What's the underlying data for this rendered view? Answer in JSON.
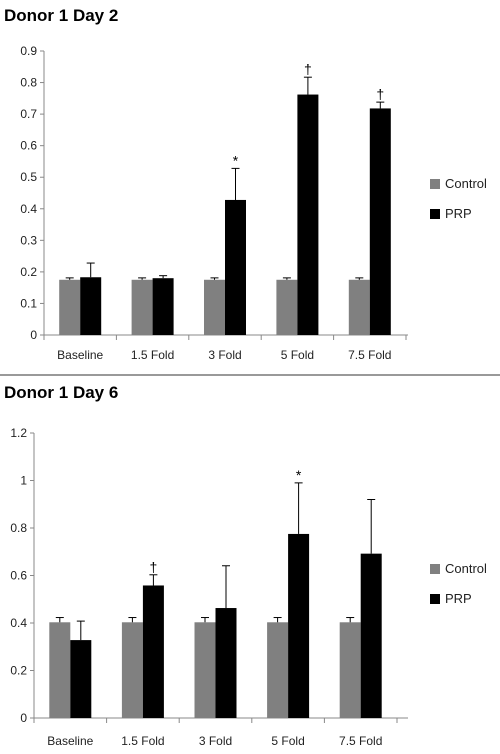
{
  "chart_data": [
    {
      "type": "bar",
      "title": "Donor 1 Day 2",
      "xlabel": "",
      "ylabel": "",
      "categories": [
        "Baseline",
        "1.5 Fold",
        "3 Fold",
        "5 Fold",
        "7.5 Fold"
      ],
      "series": [
        {
          "name": "Control",
          "color": "#808080",
          "values": [
            0.175,
            0.175,
            0.175,
            0.175,
            0.175
          ],
          "errors": [
            0.006,
            0.006,
            0.006,
            0.006,
            0.006
          ]
        },
        {
          "name": "PRP",
          "color": "#000000",
          "values": [
            0.183,
            0.18,
            0.428,
            0.762,
            0.718
          ],
          "errors": [
            0.045,
            0.008,
            0.1,
            0.055,
            0.02
          ]
        }
      ],
      "annotations": [
        "",
        "",
        "*",
        "†",
        "†"
      ],
      "ylim": [
        0,
        0.9
      ],
      "yticks": [
        "0",
        "0.1",
        "0.2",
        "0.3",
        "0.4",
        "0.5",
        "0.6",
        "0.7",
        "0.8",
        "0.9"
      ],
      "grid": false,
      "legend": "right"
    },
    {
      "type": "bar",
      "title": "Donor 1 Day 6",
      "xlabel": "",
      "ylabel": "",
      "categories": [
        "Baseline",
        "1.5 Fold",
        "3 Fold",
        "5 Fold",
        "7.5 Fold"
      ],
      "series": [
        {
          "name": "Control",
          "color": "#808080",
          "values": [
            0.403,
            0.403,
            0.403,
            0.403,
            0.403
          ],
          "errors": [
            0.02,
            0.02,
            0.02,
            0.02,
            0.02
          ]
        },
        {
          "name": "PRP",
          "color": "#000000",
          "values": [
            0.328,
            0.558,
            0.463,
            0.775,
            0.692
          ],
          "errors": [
            0.08,
            0.045,
            0.178,
            0.215,
            0.228
          ]
        }
      ],
      "annotations": [
        "",
        "†",
        "",
        "*",
        ""
      ],
      "ylim": [
        0,
        1.2
      ],
      "yticks": [
        "0",
        "0.2",
        "0.4",
        "0.6",
        "0.8",
        "1",
        "1.2"
      ],
      "grid": false,
      "legend": "right"
    }
  ]
}
